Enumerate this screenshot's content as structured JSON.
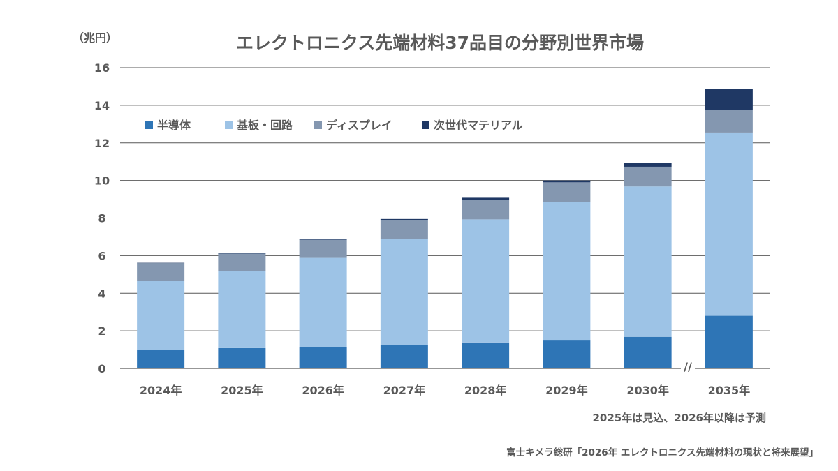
{
  "chart_data": {
    "type": "bar",
    "stacked": true,
    "title": "エレクトロニクス先端材料37品目の分野別世界市場",
    "ylabel": "（兆円）",
    "xlabel": "",
    "ylim": [
      0,
      16
    ],
    "yticks": [
      0,
      2,
      4,
      6,
      8,
      10,
      12,
      14,
      16
    ],
    "grid": true,
    "legend": "top-left",
    "axis_break_before_last": true,
    "categories": [
      "2024年",
      "2025年",
      "2026年",
      "2027年",
      "2028年",
      "2029年",
      "2030年",
      "2035年"
    ],
    "series": [
      {
        "name": "半導体",
        "color": "#2e75b6",
        "values": [
          1.0,
          1.08,
          1.15,
          1.25,
          1.38,
          1.52,
          1.68,
          2.8
        ]
      },
      {
        "name": "基板・回路",
        "color": "#9dc3e6",
        "values": [
          3.65,
          4.1,
          4.73,
          5.63,
          6.55,
          7.33,
          8.0,
          9.75
        ]
      },
      {
        "name": "ディスプレイ",
        "color": "#8497b0",
        "values": [
          0.95,
          0.93,
          0.97,
          1.0,
          1.05,
          1.05,
          1.05,
          1.2
        ]
      },
      {
        "name": "次世代マテリアル",
        "color": "#1f3864",
        "values": [
          0.02,
          0.03,
          0.05,
          0.07,
          0.1,
          0.1,
          0.2,
          1.1
        ]
      }
    ]
  },
  "note": "2025年は見込、2026年以降は予測",
  "source": "富士キメラ総研「2026年 エレクトロニクス先端材料の現状と将来展望」",
  "axis_break_mark": "//",
  "colors": {
    "text": "#595959",
    "gridline": "#595959"
  }
}
